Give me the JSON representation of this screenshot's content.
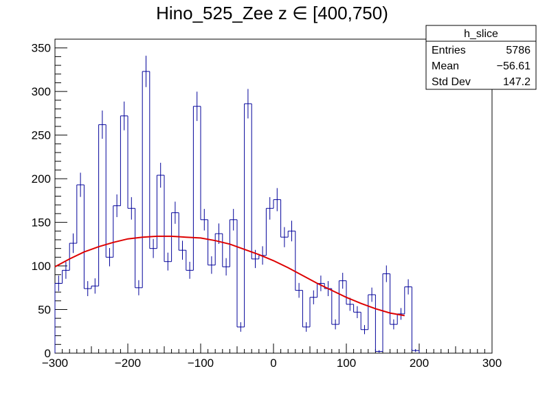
{
  "chart_data": {
    "type": "bar",
    "title": "Hino_525_Zee z  ∈ [400,750)",
    "xlabel": "",
    "ylabel": "",
    "xlim": [
      -300,
      300
    ],
    "ylim": [
      0,
      360
    ],
    "x_ticks": [
      -300,
      -200,
      -100,
      0,
      100,
      200,
      300
    ],
    "x_tick_labels": [
      "−300",
      "−200",
      "−100",
      "0",
      "100",
      "200",
      "300"
    ],
    "y_ticks": [
      0,
      50,
      100,
      150,
      200,
      250,
      300,
      350
    ],
    "y_tick_labels": [
      "0",
      "50",
      "100",
      "150",
      "200",
      "250",
      "300",
      "350"
    ],
    "bin_width": 10,
    "bin_edges_start": -300,
    "histogram": {
      "name": "h_slice",
      "color": "#000099",
      "values": [
        80,
        95,
        126,
        193,
        74,
        77,
        262,
        110,
        169,
        272,
        166,
        75,
        323,
        120,
        204,
        105,
        161,
        118,
        95,
        283,
        153,
        101,
        137,
        99,
        153,
        30,
        286,
        108,
        112,
        166,
        176,
        133,
        140,
        72,
        30,
        64,
        80,
        74,
        33,
        83,
        56,
        47,
        27,
        67,
        2,
        91,
        33,
        45,
        76,
        3
      ]
    },
    "fit": {
      "name": "fit",
      "color": "#dd0000",
      "x": [
        -300,
        -280,
        -260,
        -240,
        -220,
        -200,
        -180,
        -160,
        -140,
        -120,
        -100,
        -80,
        -60,
        -40,
        -20,
        0,
        20,
        40,
        60,
        80,
        100,
        120,
        140,
        160,
        180
      ],
      "y": [
        99,
        108,
        116,
        122,
        127,
        131,
        133,
        134,
        134,
        133,
        132,
        129,
        125,
        119,
        113,
        106,
        98,
        89,
        80,
        72,
        64,
        57,
        51,
        46,
        43
      ]
    },
    "stats_box": {
      "title": "h_slice",
      "rows": [
        {
          "label": "Entries",
          "value": "5786"
        },
        {
          "label": "Mean",
          "value": "−56.61"
        },
        {
          "label": "Std Dev",
          "value": "147.2"
        }
      ]
    }
  }
}
